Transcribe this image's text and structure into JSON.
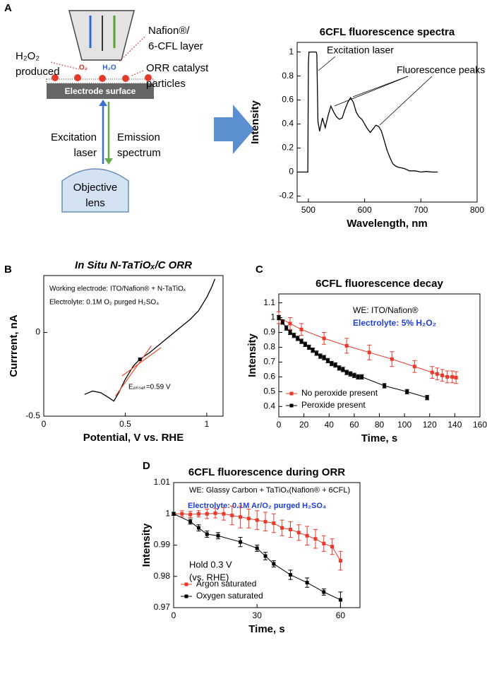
{
  "panel_labels": [
    "A",
    "B",
    "C",
    "D"
  ],
  "diagram": {
    "layer_label": [
      "Nafion®/",
      "6-CFL layer"
    ],
    "product_label": [
      "H₂O₂",
      "produced"
    ],
    "o2": "O₂",
    "h2o": "H₂O",
    "catalyst_label": [
      "ORR catalyst",
      "particles"
    ],
    "electrode": "Electrode surface",
    "excitation": [
      "Excitation",
      "laser"
    ],
    "emission": [
      "Emission",
      "spectrum"
    ],
    "objective": [
      "Objective",
      "lens"
    ]
  },
  "chart_data": [
    {
      "type": "line",
      "title": "6CFL fluorescence spectra",
      "xlabel": "Wavelength, nm",
      "ylabel": "Intensity",
      "xlim": [
        480,
        800
      ],
      "xticks": [
        500,
        600,
        700,
        800
      ],
      "ylim": [
        -0.25,
        1.08
      ],
      "yticks": [
        -0.2,
        0,
        0.2,
        0.4,
        0.6,
        0.8,
        1
      ],
      "annotations": [
        {
          "text": "Excitation laser"
        },
        {
          "text": "Fluorescence peaks"
        }
      ],
      "series": [
        {
          "color": "#000000",
          "x": [
            480,
            499,
            500,
            501,
            514,
            515,
            517,
            520,
            525,
            530,
            535,
            540,
            545,
            550,
            555,
            560,
            565,
            570,
            575,
            580,
            585,
            590,
            595,
            600,
            605,
            610,
            615,
            620,
            625,
            630,
            635,
            640,
            645,
            650,
            655,
            660,
            670,
            680,
            690,
            700,
            710,
            720,
            730
          ],
          "values": [
            0,
            0,
            0.9,
            1,
            1,
            0.98,
            0.42,
            0.34,
            0.45,
            0.37,
            0.47,
            0.55,
            0.5,
            0.46,
            0.44,
            0.45,
            0.52,
            0.58,
            0.62,
            0.58,
            0.5,
            0.46,
            0.44,
            0.4,
            0.36,
            0.33,
            0.36,
            0.39,
            0.38,
            0.34,
            0.26,
            0.18,
            0.12,
            0.07,
            0.05,
            0.04,
            0.03,
            0.01,
            0.01,
            0,
            0.005,
            0,
            0
          ]
        }
      ]
    },
    {
      "type": "line",
      "title": "In Situ N-TaTiOₓ/C ORR",
      "xlabel": "Potential, V vs. RHE",
      "ylabel": "Currrent, nA",
      "xlim": [
        0,
        1.1
      ],
      "xticks": [
        0,
        0.5,
        1
      ],
      "ylim": [
        -0.5,
        0.34
      ],
      "yticks": [
        -0.5,
        0
      ],
      "annotations": [
        {
          "text": "Working electrode: ITO/Nafion® + N-TaTiOₓ"
        },
        {
          "text": "Electrolyte: 0.1M O₂ purged H₂SO₄"
        },
        {
          "text": "Eₒₙₛₑₜ=0.59 V"
        }
      ],
      "series": [
        {
          "color": "#000000",
          "x": [
            0.25,
            0.3,
            0.35,
            0.4,
            0.43,
            0.46,
            0.5,
            0.55,
            0.59,
            0.65,
            0.7,
            0.75,
            0.8,
            0.85,
            0.9,
            0.95,
            1.0,
            1.03,
            1.05
          ],
          "values": [
            -0.37,
            -0.35,
            -0.36,
            -0.39,
            -0.41,
            -0.36,
            -0.28,
            -0.2,
            -0.16,
            -0.12,
            -0.08,
            -0.04,
            0,
            0.04,
            0.08,
            0.13,
            0.21,
            0.27,
            0.32
          ]
        },
        {
          "color": "#e8553a",
          "x": [
            0.44,
            0.66
          ],
          "values": [
            -0.38,
            -0.08
          ]
        },
        {
          "color": "#e8553a",
          "x": [
            0.48,
            0.72
          ],
          "values": [
            -0.26,
            -0.09
          ]
        },
        {
          "color": "#000000",
          "marker": "square",
          "line": false,
          "x": [
            0.59
          ],
          "values": [
            -0.16
          ]
        }
      ]
    },
    {
      "type": "line",
      "title": "6CFL fluorescence decay",
      "xlabel": "Time, s",
      "ylabel": "Intensity",
      "xlim": [
        0,
        160
      ],
      "xticks": [
        0,
        20,
        40,
        60,
        80,
        100,
        120,
        140,
        160
      ],
      "ylim": [
        0.33,
        1.16
      ],
      "yticks": [
        0.4,
        0.5,
        0.6,
        0.7,
        0.8,
        0.9,
        1,
        1.1
      ],
      "legend": "lower left",
      "annotations": [
        {
          "text": "WE: ITO/Nafion®"
        },
        {
          "text": "Electrolyte: 5% H₂O₂",
          "color": "#1f3fd6"
        }
      ],
      "series": [
        {
          "name": "No peroxide present",
          "color": "#e8392a",
          "marker": "square",
          "x": [
            0,
            9,
            18,
            36,
            54,
            72,
            90,
            108,
            122,
            126,
            130,
            134,
            138,
            141
          ],
          "values": [
            1,
            0.96,
            0.92,
            0.86,
            0.81,
            0.765,
            0.72,
            0.67,
            0.63,
            0.62,
            0.61,
            0.6,
            0.6,
            0.595
          ],
          "errors": [
            0.04,
            0.04,
            0.04,
            0.04,
            0.05,
            0.05,
            0.05,
            0.04,
            0.04,
            0.04,
            0.04,
            0.04,
            0.04,
            0.04
          ]
        },
        {
          "name": "Peroxide present",
          "color": "#000000",
          "marker": "square",
          "x": [
            0,
            3,
            6,
            9,
            12,
            15,
            18,
            21,
            24,
            27,
            30,
            33,
            36,
            39,
            42,
            45,
            48,
            51,
            54,
            57,
            60,
            63,
            66,
            84,
            102,
            118
          ],
          "values": [
            1,
            0.97,
            0.93,
            0.9,
            0.88,
            0.86,
            0.84,
            0.82,
            0.8,
            0.78,
            0.76,
            0.74,
            0.73,
            0.71,
            0.69,
            0.68,
            0.66,
            0.65,
            0.63,
            0.62,
            0.61,
            0.6,
            0.6,
            0.54,
            0.5,
            0.46
          ],
          "errors": [
            0.015,
            0.015,
            0.015,
            0.015,
            0.015,
            0.015,
            0.015,
            0.015,
            0.015,
            0.015,
            0.015,
            0.015,
            0.015,
            0.015,
            0.015,
            0.015,
            0.015,
            0.015,
            0.015,
            0.015,
            0.015,
            0.015,
            0.015,
            0.015,
            0.015,
            0.015
          ]
        }
      ]
    },
    {
      "type": "line",
      "title": "6CFL fluorescence during ORR",
      "xlabel": "Time, s",
      "ylabel": "Intensity",
      "xlim": [
        0,
        67
      ],
      "xticks": [
        0,
        30,
        60
      ],
      "ylim": [
        0.97,
        1.01
      ],
      "yticks": [
        0.97,
        0.98,
        0.99,
        1,
        1.01
      ],
      "legend": "lower left",
      "annotations": [
        {
          "text": "WE: Glassy Carbon + TaTiOₓ(Nafion® + 6CFL)"
        },
        {
          "text": "Electrolyte: 0.1M Ar/O₂ purged H₂SO₄",
          "color": "#1f3fd6"
        },
        {
          "text": "Hold 0.3 V"
        },
        {
          "text": "(vs. RHE)"
        }
      ],
      "series": [
        {
          "name": "Argon saturated",
          "color": "#e8392a",
          "marker": "square",
          "x": [
            0,
            3,
            6,
            9,
            12,
            15,
            18,
            21,
            24,
            27,
            30,
            33,
            36,
            39,
            42,
            45,
            48,
            51,
            54,
            57,
            60
          ],
          "values": [
            1,
            1,
            0.9998,
            1,
            1,
            1.0002,
            1,
            0.9995,
            0.999,
            0.9985,
            0.998,
            0.9975,
            0.997,
            0.9955,
            0.995,
            0.994,
            0.993,
            0.992,
            0.9905,
            0.9895,
            0.985
          ],
          "errors": [
            0.0005,
            0.001,
            0.001,
            0.001,
            0.0015,
            0.0015,
            0.002,
            0.003,
            0.0035,
            0.003,
            0.003,
            0.003,
            0.003,
            0.0025,
            0.0025,
            0.0025,
            0.003,
            0.003,
            0.0025,
            0.0025,
            0.003
          ]
        },
        {
          "name": "Oxygen saturated",
          "color": "#000000",
          "marker": "square",
          "x": [
            0,
            6,
            9,
            12,
            16,
            24,
            30,
            33,
            36,
            42,
            48,
            54,
            60
          ],
          "values": [
            1,
            0.9975,
            0.9955,
            0.9935,
            0.993,
            0.991,
            0.989,
            0.9865,
            0.984,
            0.9805,
            0.978,
            0.975,
            0.9725
          ],
          "errors": [
            0.0005,
            0.0008,
            0.001,
            0.001,
            0.001,
            0.0015,
            0.001,
            0.0012,
            0.001,
            0.0015,
            0.0015,
            0.001,
            0.0025
          ]
        }
      ]
    }
  ]
}
